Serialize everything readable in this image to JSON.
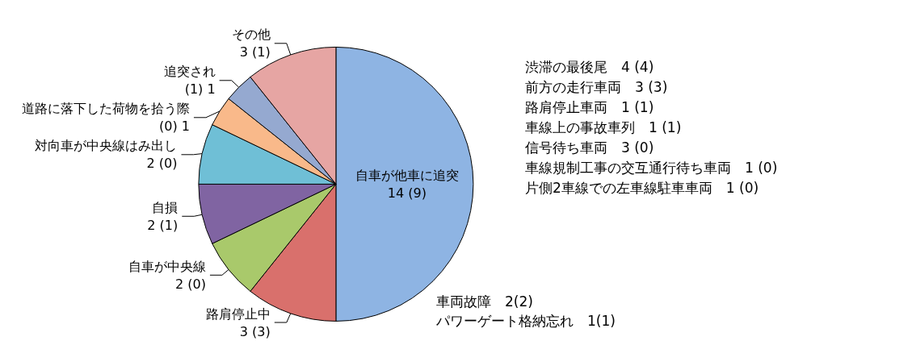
{
  "chart_data": {
    "type": "pie",
    "categories": [
      "自車が他車に追突",
      "路肩停止中",
      "自車が中央線",
      "自損",
      "対向車が中央線はみ出し",
      "道路に落下した荷物を拾う際",
      "追突され",
      "その他"
    ],
    "values": [
      14,
      3,
      2,
      2,
      2,
      1,
      1,
      3
    ],
    "value_labels": [
      "14 (9)",
      "3 (3)",
      "2 (0)",
      "2 (1)",
      "2 (0)",
      "(0) 1",
      "(1) 1",
      "3 (1)"
    ],
    "colors": [
      "#8eb4e3",
      "#d9706c",
      "#a9c96b",
      "#8064a2",
      "#6fbfd6",
      "#f9b98a",
      "#95a9d0",
      "#e6a5a3"
    ],
    "annotations": [
      {
        "text": "渋滞の最後尾　4 (4)",
        "x": "自車が他車に追突"
      },
      {
        "text": "前方の走行車両　3 (3)",
        "x": "自車が他車に追突"
      },
      {
        "text": "路肩停止車両　1 (1)",
        "x": "自車が他車に追突"
      },
      {
        "text": "車線上の事故車列　1 (1)",
        "x": "自車が他車に追突"
      },
      {
        "text": "信号待ち車両　3 (0)",
        "x": "自車が他車に追突"
      },
      {
        "text": "車線規制工事の交互通行待ち車両　1 (0)",
        "x": "自車が他車に追突"
      },
      {
        "text": "片側2車線での左車線駐車車両　1 (0)",
        "x": "自車が他車に追突"
      },
      {
        "text": "車両故障　2(2)",
        "x": "路肩停止中"
      },
      {
        "text": "パワーゲート格納忘れ　1(1)",
        "x": "路肩停止中"
      }
    ]
  }
}
